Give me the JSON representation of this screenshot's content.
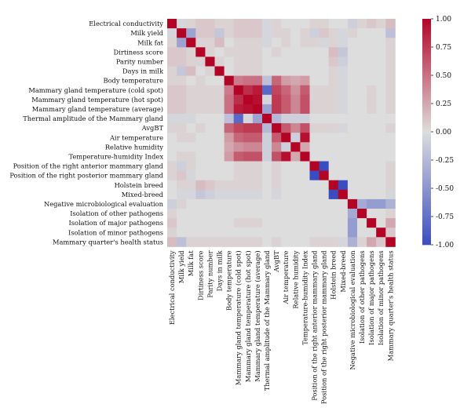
{
  "chart_data": {
    "type": "heatmap",
    "labels": [
      "Electrical conductivity",
      "Milk yield",
      "Milk fat",
      "Dirtiness score",
      "Parity number",
      "Days in milk",
      "Body temperature",
      "Mammary gland temperature (cold spot)",
      "Mammary gland temperature (hot spot)",
      "Mammary gland temperature (average)",
      "Thermal amplitude of the Mammary gland",
      "AvgBT",
      "Air temperature",
      "Relative humidity",
      "Temperature-humidity Index",
      "Position of the right anterior mammary gland",
      "Position of the right posterior mammary gland",
      "Holstein breed",
      "Mixed-breed",
      "Negative microbiological evaluation",
      "Isolation of other pathogens",
      "Isolation of major pathogens",
      "Isolation of minor pathogens",
      "Mammary quarter's health status"
    ],
    "matrix": [
      [
        1.0,
        -0.05,
        0.05,
        0.1,
        0.1,
        0.05,
        0.05,
        0.1,
        0.1,
        0.1,
        -0.05,
        0.05,
        0.0,
        0.0,
        0.0,
        0.05,
        0.05,
        0.0,
        0.0,
        -0.1,
        0.05,
        0.1,
        0.05,
        0.15
      ],
      [
        -0.05,
        1.0,
        -0.4,
        0.1,
        0.1,
        -0.15,
        0.05,
        0.1,
        0.1,
        0.1,
        -0.05,
        0.05,
        0.05,
        0.0,
        0.05,
        -0.1,
        0.1,
        0.05,
        -0.05,
        0.05,
        0.0,
        0.0,
        0.0,
        -0.2
      ],
      [
        0.05,
        -0.4,
        1.0,
        0.05,
        0.05,
        0.15,
        0.0,
        0.05,
        0.05,
        0.05,
        -0.05,
        0.0,
        0.05,
        0.0,
        0.05,
        0.05,
        -0.05,
        0.05,
        -0.05,
        0.0,
        0.0,
        0.0,
        0.0,
        0.05
      ],
      [
        0.1,
        0.1,
        0.05,
        1.0,
        0.05,
        0.0,
        0.05,
        0.05,
        0.05,
        0.05,
        0.0,
        0.05,
        0.0,
        0.0,
        0.0,
        0.0,
        0.0,
        0.15,
        -0.15,
        0.0,
        0.0,
        0.0,
        0.0,
        0.05
      ],
      [
        0.1,
        0.1,
        0.05,
        0.05,
        1.0,
        0.05,
        0.0,
        0.05,
        0.05,
        0.05,
        0.0,
        0.0,
        0.0,
        0.0,
        0.0,
        0.0,
        0.0,
        0.1,
        -0.1,
        0.0,
        0.0,
        0.0,
        0.0,
        0.05
      ],
      [
        0.05,
        -0.15,
        0.15,
        0.0,
        0.05,
        1.0,
        0.0,
        0.05,
        0.05,
        0.05,
        0.0,
        0.0,
        0.0,
        0.0,
        0.0,
        0.0,
        0.0,
        0.05,
        -0.05,
        0.0,
        0.0,
        0.0,
        0.0,
        0.05
      ],
      [
        0.05,
        0.05,
        0.0,
        0.05,
        0.0,
        0.0,
        1.0,
        0.45,
        0.5,
        0.5,
        -0.2,
        0.55,
        0.3,
        0.25,
        0.3,
        0.0,
        0.0,
        0.05,
        -0.05,
        0.0,
        0.0,
        0.0,
        0.0,
        0.05
      ],
      [
        0.1,
        0.1,
        0.05,
        0.05,
        0.05,
        0.05,
        0.45,
        1.0,
        0.8,
        0.9,
        -0.8,
        0.7,
        0.55,
        0.35,
        0.6,
        0.05,
        0.05,
        0.05,
        -0.05,
        0.0,
        0.0,
        0.05,
        0.0,
        0.05
      ],
      [
        0.1,
        0.1,
        0.05,
        0.05,
        0.05,
        0.05,
        0.5,
        0.8,
        1.0,
        0.95,
        -0.05,
        0.75,
        0.6,
        0.4,
        0.65,
        0.05,
        0.05,
        0.05,
        -0.05,
        0.0,
        0.0,
        0.05,
        0.0,
        0.05
      ],
      [
        0.1,
        0.1,
        0.05,
        0.05,
        0.05,
        0.05,
        0.5,
        0.9,
        0.95,
        1.0,
        -0.4,
        0.75,
        0.6,
        0.4,
        0.65,
        0.05,
        0.05,
        0.05,
        -0.05,
        0.0,
        0.0,
        0.05,
        0.0,
        0.05
      ],
      [
        -0.05,
        -0.05,
        -0.05,
        0.0,
        0.0,
        0.0,
        -0.2,
        -0.8,
        -0.05,
        -0.4,
        1.0,
        -0.25,
        -0.1,
        -0.1,
        -0.1,
        0.0,
        0.0,
        0.0,
        0.0,
        0.0,
        0.0,
        0.0,
        0.0,
        0.0
      ],
      [
        0.05,
        0.05,
        0.0,
        0.05,
        0.0,
        0.0,
        0.55,
        0.7,
        0.75,
        0.75,
        -0.25,
        1.0,
        0.6,
        0.4,
        0.65,
        0.05,
        0.05,
        0.05,
        -0.05,
        0.0,
        0.0,
        0.0,
        0.0,
        0.05
      ],
      [
        0.0,
        0.05,
        0.05,
        0.0,
        0.0,
        0.0,
        0.3,
        0.55,
        0.6,
        0.6,
        -0.1,
        0.6,
        1.0,
        -0.1,
        0.95,
        0.0,
        0.0,
        0.0,
        0.0,
        0.0,
        0.0,
        0.0,
        0.0,
        0.0
      ],
      [
        0.0,
        0.0,
        0.0,
        0.0,
        0.0,
        0.0,
        0.25,
        0.35,
        0.4,
        0.4,
        -0.1,
        0.4,
        -0.1,
        1.0,
        0.25,
        0.0,
        0.0,
        0.0,
        0.0,
        0.0,
        0.0,
        0.0,
        0.0,
        0.0
      ],
      [
        0.0,
        0.05,
        0.05,
        0.0,
        0.0,
        0.0,
        0.3,
        0.6,
        0.65,
        0.65,
        -0.1,
        0.65,
        0.95,
        0.25,
        1.0,
        0.0,
        0.0,
        0.0,
        0.0,
        0.0,
        0.0,
        0.0,
        0.0,
        0.0
      ],
      [
        0.05,
        -0.1,
        0.05,
        0.0,
        0.0,
        0.0,
        0.0,
        0.05,
        0.05,
        0.05,
        0.0,
        0.05,
        0.0,
        0.0,
        0.0,
        1.0,
        -1.0,
        0.0,
        0.0,
        0.0,
        0.0,
        0.0,
        0.0,
        0.05
      ],
      [
        0.05,
        0.1,
        -0.05,
        0.0,
        0.0,
        0.0,
        0.0,
        0.05,
        0.05,
        0.05,
        0.0,
        0.05,
        0.0,
        0.0,
        0.0,
        -1.0,
        1.0,
        0.0,
        0.0,
        0.0,
        0.0,
        0.0,
        0.0,
        0.05
      ],
      [
        0.0,
        0.05,
        0.05,
        0.15,
        0.1,
        0.05,
        0.05,
        0.05,
        0.05,
        0.05,
        0.0,
        0.05,
        0.0,
        0.0,
        0.0,
        0.0,
        0.0,
        1.0,
        -1.0,
        0.0,
        0.0,
        0.0,
        0.0,
        0.05
      ],
      [
        0.0,
        -0.05,
        -0.05,
        -0.15,
        -0.1,
        -0.05,
        -0.05,
        -0.05,
        -0.05,
        -0.05,
        0.0,
        -0.05,
        0.0,
        0.0,
        0.0,
        0.0,
        0.0,
        -1.0,
        1.0,
        0.0,
        0.0,
        0.0,
        0.0,
        -0.05
      ],
      [
        -0.1,
        0.05,
        0.0,
        0.0,
        0.0,
        0.0,
        0.0,
        0.0,
        0.0,
        0.0,
        0.0,
        0.0,
        0.0,
        0.0,
        0.0,
        0.0,
        0.0,
        0.0,
        0.0,
        1.0,
        -0.35,
        -0.45,
        -0.45,
        -0.3
      ],
      [
        0.05,
        0.0,
        0.0,
        0.0,
        0.0,
        0.0,
        0.0,
        0.0,
        0.0,
        0.0,
        0.0,
        0.0,
        0.0,
        0.0,
        0.0,
        0.0,
        0.0,
        0.0,
        0.0,
        -0.35,
        1.0,
        0.0,
        0.0,
        0.05
      ],
      [
        0.1,
        0.0,
        0.0,
        0.0,
        0.0,
        0.0,
        0.0,
        0.05,
        0.05,
        0.05,
        0.0,
        0.0,
        0.0,
        0.0,
        0.0,
        0.0,
        0.0,
        0.0,
        0.0,
        -0.45,
        0.0,
        1.0,
        0.0,
        0.25
      ],
      [
        0.05,
        0.0,
        0.0,
        0.0,
        0.0,
        0.0,
        0.0,
        0.0,
        0.0,
        0.0,
        0.0,
        0.0,
        0.0,
        0.0,
        0.0,
        0.0,
        0.0,
        0.0,
        0.0,
        -0.45,
        0.0,
        0.0,
        1.0,
        0.1
      ],
      [
        0.15,
        -0.2,
        0.05,
        0.05,
        0.05,
        0.05,
        0.05,
        0.05,
        0.05,
        0.05,
        0.0,
        0.05,
        0.0,
        0.0,
        0.0,
        0.05,
        0.05,
        0.05,
        -0.05,
        -0.3,
        0.05,
        0.25,
        0.1,
        1.0
      ]
    ],
    "vmin": -1.0,
    "vmax": 1.0,
    "colorbar_ticks": [
      "1.00",
      "0.75",
      "0.50",
      "0.25",
      "0.00",
      "-0.25",
      "-0.50",
      "-0.75",
      "-1.00"
    ],
    "colormap": [
      "#3b4cc0",
      "#dddddd",
      "#b40426"
    ]
  }
}
